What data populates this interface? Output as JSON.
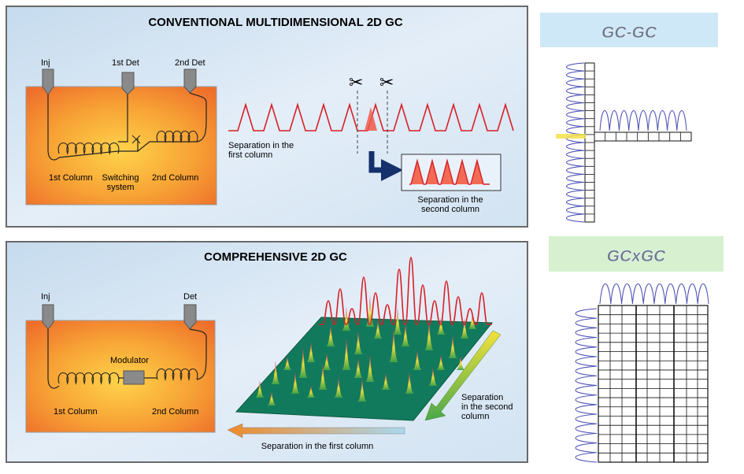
{
  "panels": {
    "top": {
      "title": "CONVENTIONAL MULTIDIMENSIONAL 2D GC",
      "labels": {
        "inj": "Inj",
        "det1": "1st Det",
        "det2": "2nd Det",
        "col1": "1st Column",
        "switching": "Switching\nsystem",
        "col2": "2nd Column",
        "sep_first": "Separation in the\nfirst column",
        "sep_second": "Separation in the\nsecond column"
      }
    },
    "bottom": {
      "title": "COMPREHENSIVE 2D GC",
      "labels": {
        "inj": "Inj",
        "det": "Det",
        "modulator": "Modulator",
        "col1": "1st Column",
        "col2": "2nd Column",
        "sep_second": "Separation\nin the second\ncolumn",
        "sep_first": "Separation in the first column"
      }
    }
  },
  "right": {
    "gcgc_label": "GC-GC",
    "gcxgc_label": "GCxGC"
  },
  "colors": {
    "panel_bg": "#d7e6f3",
    "oven_orange": "#f39a3a",
    "peak_red": "#d81f26",
    "grid_green": "#0f7a5a",
    "arrow_navy": "#15306b",
    "trace_blue": "#4a4fb4",
    "gcgc_box": "#cfe8f7",
    "gcxgc_box": "#d6f0d0"
  }
}
